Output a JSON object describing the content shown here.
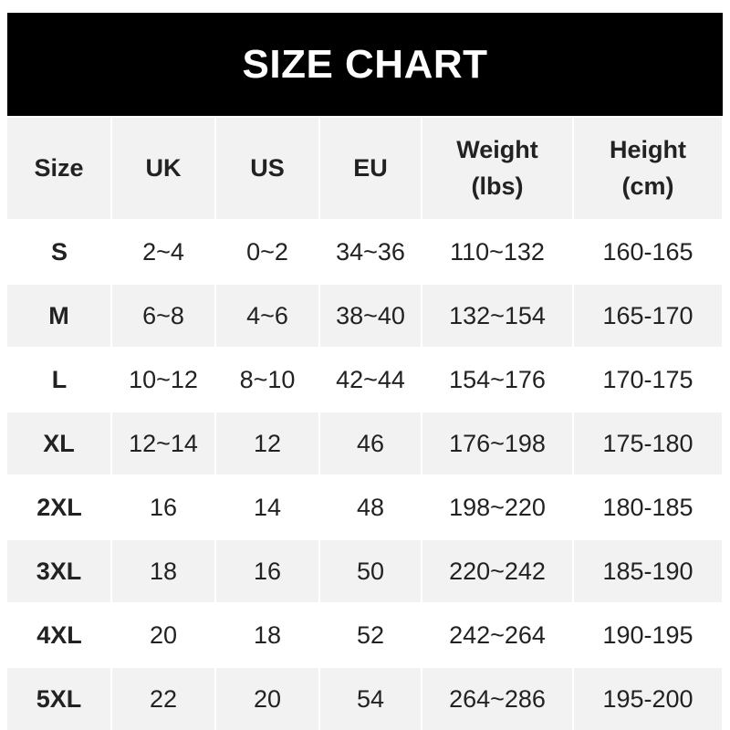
{
  "title": "SIZE CHART",
  "colors": {
    "title_bg": "#000000",
    "stripe": "#f2f2f2",
    "text": "#222222"
  },
  "columns": [
    "Size",
    "UK",
    "US",
    "EU",
    "Weight\n(lbs)",
    "Height\n(cm)"
  ],
  "rows": [
    [
      "S",
      "2~4",
      "0~2",
      "34~36",
      "110~132",
      "160-165"
    ],
    [
      "M",
      "6~8",
      "4~6",
      "38~40",
      "132~154",
      "165-170"
    ],
    [
      "L",
      "10~12",
      "8~10",
      "42~44",
      "154~176",
      "170-175"
    ],
    [
      "XL",
      "12~14",
      "12",
      "46",
      "176~198",
      "175-180"
    ],
    [
      "2XL",
      "16",
      "14",
      "48",
      "198~220",
      "180-185"
    ],
    [
      "3XL",
      "18",
      "16",
      "50",
      "220~242",
      "185-190"
    ],
    [
      "4XL",
      "20",
      "18",
      "52",
      "242~264",
      "190-195"
    ],
    [
      "5XL",
      "22",
      "20",
      "54",
      "264~286",
      "195-200"
    ]
  ]
}
